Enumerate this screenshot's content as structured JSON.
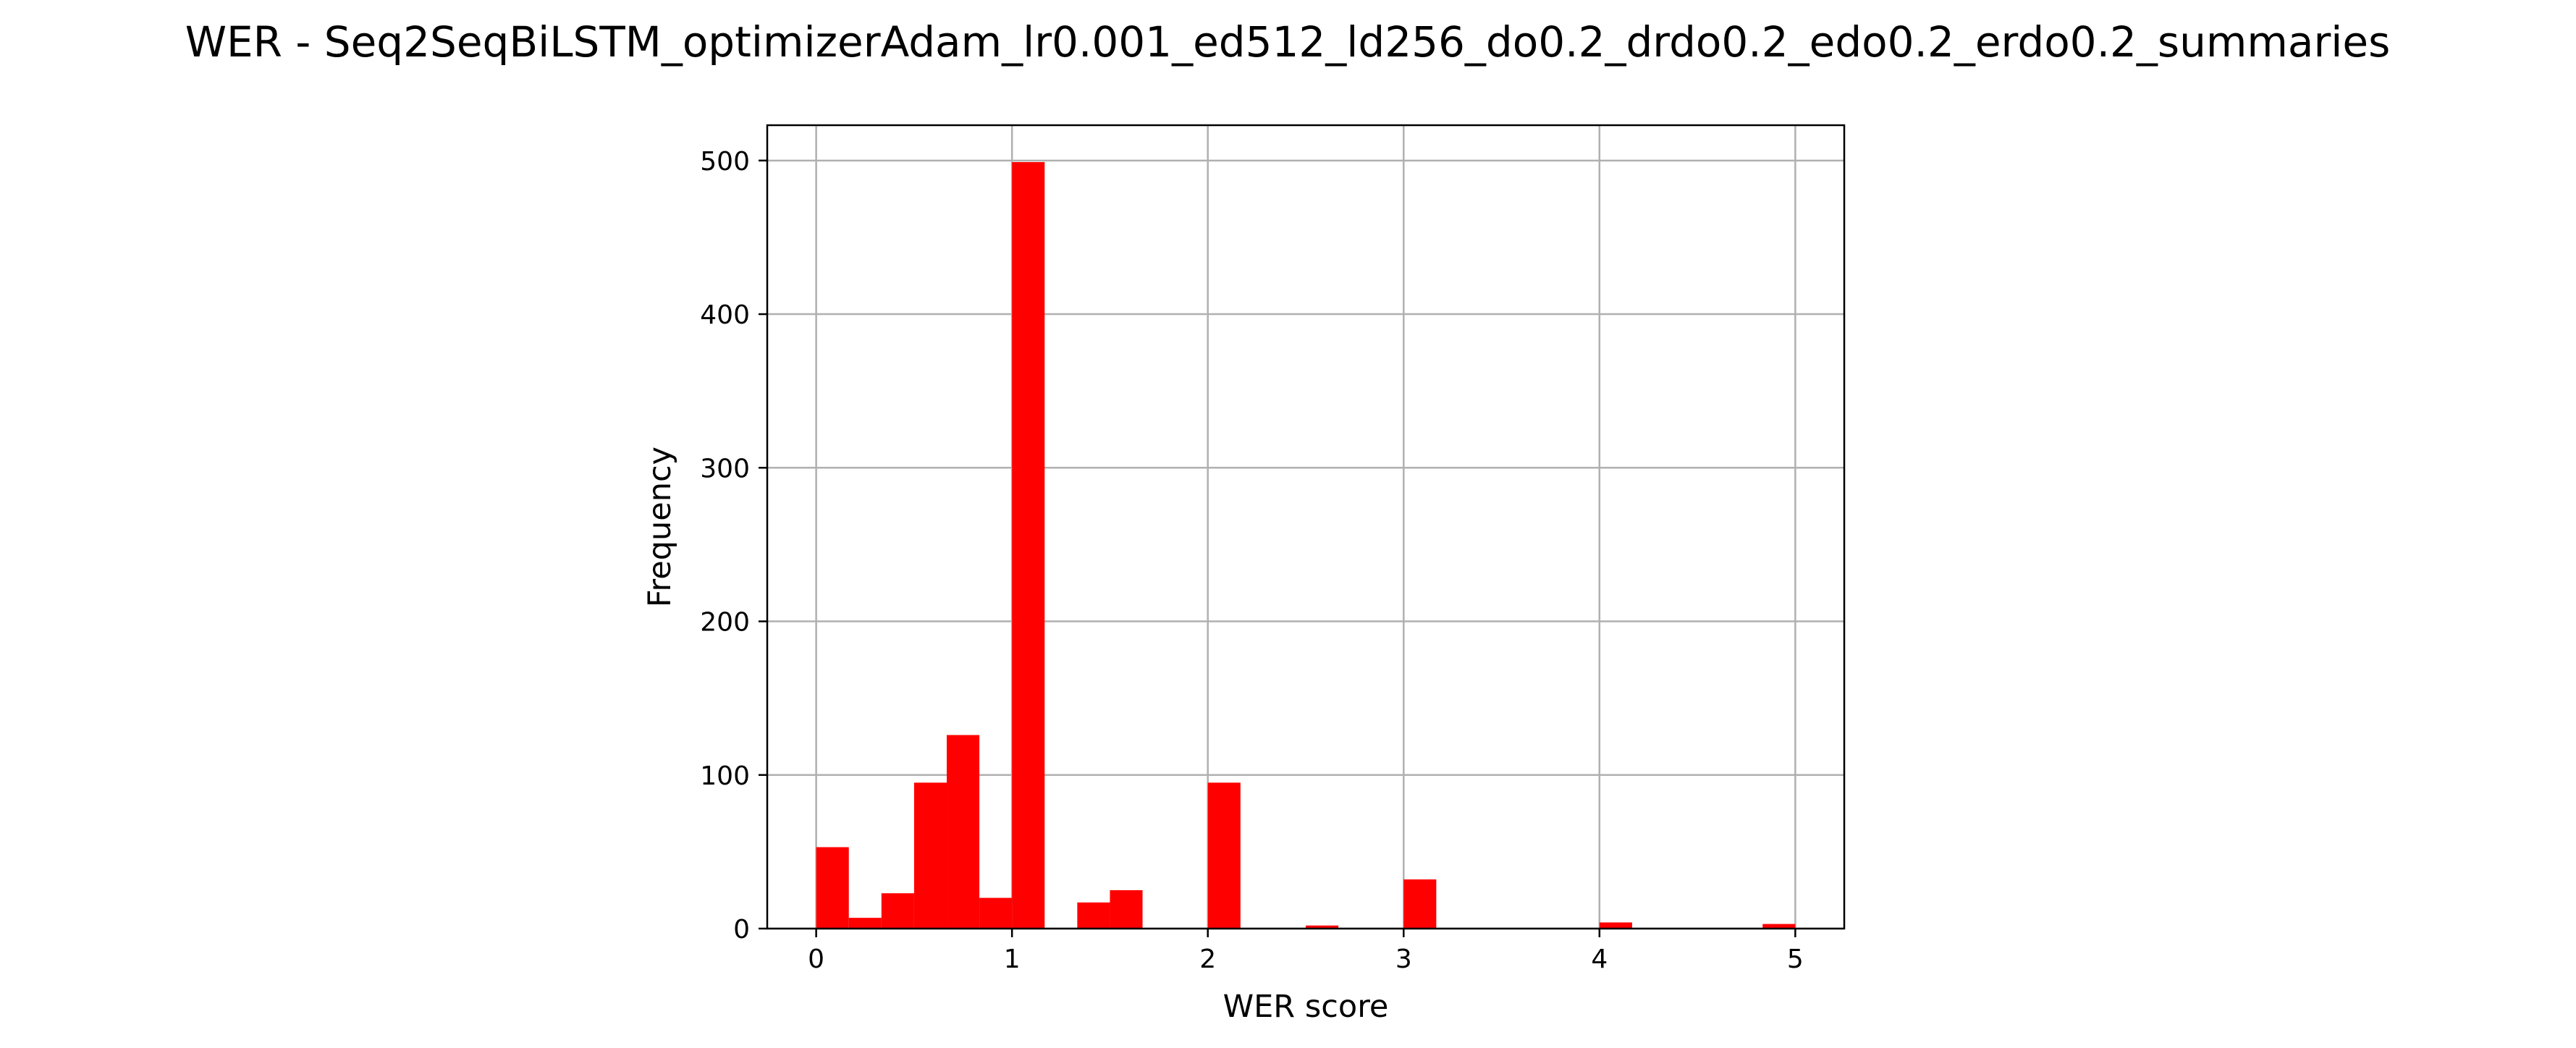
{
  "chart_data": {
    "type": "bar",
    "title": "WER - Seq2SeqBiLSTM_optimizerAdam_lr0.001_ed512_ld256_do0.2_drdo0.2_edo0.2_erdo0.2_summaries",
    "xlabel": "WER score",
    "ylabel": "Frequency",
    "xlim": [
      -0.25,
      5.25
    ],
    "ylim": [
      0,
      523
    ],
    "xticks": [
      0,
      1,
      2,
      3,
      4,
      5
    ],
    "yticks": [
      0,
      100,
      200,
      300,
      400,
      500
    ],
    "grid": true,
    "bar_color": "#ff0000",
    "bin_width": 0.1667,
    "bins": [
      {
        "x_start": 0.0,
        "value": 53
      },
      {
        "x_start": 0.1667,
        "value": 7
      },
      {
        "x_start": 0.3333,
        "value": 23
      },
      {
        "x_start": 0.5,
        "value": 95
      },
      {
        "x_start": 0.6667,
        "value": 126
      },
      {
        "x_start": 0.8333,
        "value": 20
      },
      {
        "x_start": 1.0,
        "value": 499
      },
      {
        "x_start": 1.1667,
        "value": 0
      },
      {
        "x_start": 1.3333,
        "value": 17
      },
      {
        "x_start": 1.5,
        "value": 25
      },
      {
        "x_start": 1.6667,
        "value": 0
      },
      {
        "x_start": 1.8333,
        "value": 0
      },
      {
        "x_start": 2.0,
        "value": 95
      },
      {
        "x_start": 2.1667,
        "value": 0
      },
      {
        "x_start": 2.3333,
        "value": 0
      },
      {
        "x_start": 2.5,
        "value": 2
      },
      {
        "x_start": 2.6667,
        "value": 0
      },
      {
        "x_start": 2.8333,
        "value": 0
      },
      {
        "x_start": 3.0,
        "value": 32
      },
      {
        "x_start": 3.1667,
        "value": 0
      },
      {
        "x_start": 3.3333,
        "value": 0
      },
      {
        "x_start": 3.5,
        "value": 0
      },
      {
        "x_start": 3.6667,
        "value": 0
      },
      {
        "x_start": 3.8333,
        "value": 0
      },
      {
        "x_start": 4.0,
        "value": 4
      },
      {
        "x_start": 4.1667,
        "value": 0
      },
      {
        "x_start": 4.3333,
        "value": 0
      },
      {
        "x_start": 4.5,
        "value": 0
      },
      {
        "x_start": 4.6667,
        "value": 0
      },
      {
        "x_start": 4.8333,
        "value": 3
      }
    ]
  }
}
